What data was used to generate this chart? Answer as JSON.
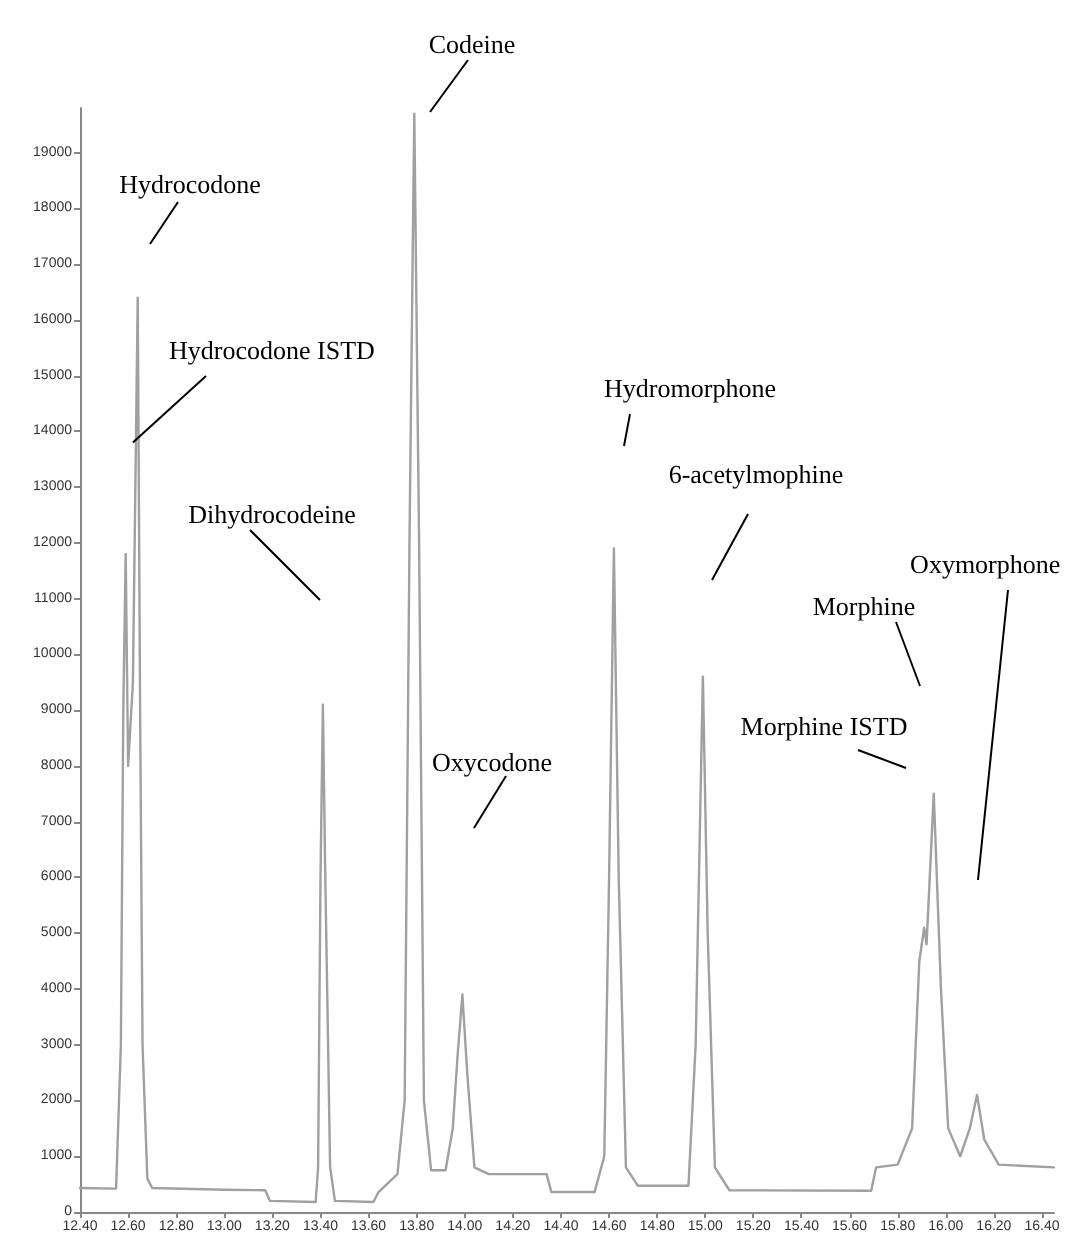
{
  "chart_data": {
    "type": "line",
    "color": "#a0a0a0",
    "line_style": "solid",
    "marker": "none",
    "grid": false,
    "x": [
      12.4,
      12.55,
      12.57,
      12.58,
      12.59,
      12.6,
      12.62,
      12.64,
      12.65,
      12.66,
      12.68,
      12.7,
      13.0,
      13.17,
      13.19,
      13.38,
      13.39,
      13.4,
      13.41,
      13.42,
      13.44,
      13.46,
      13.62,
      13.64,
      13.72,
      13.75,
      13.77,
      13.79,
      13.81,
      13.83,
      13.86,
      13.92,
      13.95,
      13.97,
      13.99,
      14.01,
      14.04,
      14.1,
      14.34,
      14.36,
      14.54,
      14.58,
      14.6,
      14.62,
      14.64,
      14.67,
      14.72,
      14.93,
      14.96,
      14.99,
      15.01,
      15.04,
      15.1,
      15.69,
      15.71,
      15.8,
      15.86,
      15.89,
      15.91,
      15.92,
      15.95,
      15.98,
      16.01,
      16.06,
      16.1,
      16.13,
      16.16,
      16.22,
      16.45
    ],
    "values": [
      430,
      420,
      3000,
      9000,
      11800,
      8000,
      9500,
      16400,
      9000,
      3000,
      600,
      430,
      400,
      390,
      200,
      180,
      800,
      6000,
      9100,
      6000,
      800,
      200,
      180,
      350,
      680,
      2000,
      12000,
      19700,
      12000,
      2000,
      750,
      750,
      1500,
      2800,
      3900,
      2500,
      800,
      680,
      680,
      360,
      360,
      1000,
      6000,
      11900,
      6000,
      800,
      470,
      470,
      3000,
      9600,
      5000,
      800,
      390,
      380,
      800,
      850,
      1500,
      4500,
      5100,
      4800,
      7500,
      4000,
      1500,
      1000,
      1500,
      2100,
      1300,
      850,
      800
    ],
    "xlim": [
      12.4,
      16.45
    ],
    "ylim": [
      0,
      19800
    ],
    "xticks": [
      {
        "value": 12.4,
        "label": "12.40"
      },
      {
        "value": 12.6,
        "label": "12.60"
      },
      {
        "value": 12.8,
        "label": "12.80"
      },
      {
        "value": 13.0,
        "label": "13.00"
      },
      {
        "value": 13.2,
        "label": "13.20"
      },
      {
        "value": 13.4,
        "label": "13.40"
      },
      {
        "value": 13.6,
        "label": "13.60"
      },
      {
        "value": 13.8,
        "label": "13.80"
      },
      {
        "value": 14.0,
        "label": "14.00"
      },
      {
        "value": 14.2,
        "label": "14.20"
      },
      {
        "value": 14.4,
        "label": "14.40"
      },
      {
        "value": 14.6,
        "label": "14.60"
      },
      {
        "value": 14.8,
        "label": "14.80"
      },
      {
        "value": 15.0,
        "label": "15.00"
      },
      {
        "value": 15.2,
        "label": "15.20"
      },
      {
        "value": 15.4,
        "label": "15.40"
      },
      {
        "value": 15.6,
        "label": "15.60"
      },
      {
        "value": 15.8,
        "label": "15.80"
      },
      {
        "value": 16.0,
        "label": "16.00"
      },
      {
        "value": 16.2,
        "label": "16.20"
      },
      {
        "value": 16.4,
        "label": "16.40"
      }
    ],
    "yticks": [
      0,
      1000,
      2000,
      3000,
      4000,
      5000,
      6000,
      7000,
      8000,
      9000,
      10000,
      11000,
      12000,
      13000,
      14000,
      15000,
      16000,
      17000,
      18000,
      19000
    ],
    "annotations": [
      "Hydrocodone",
      {
        "text": "Hydrocodone ISTD",
        "x": 12.62,
        "y": 13800
      },
      "Dihydrocodeine",
      "Codeine",
      "Oxycodone",
      "Hydromorphone",
      "6-acetylmophine",
      "Morphine ISTD",
      "Morphine",
      "Oxymorphone"
    ]
  }
}
